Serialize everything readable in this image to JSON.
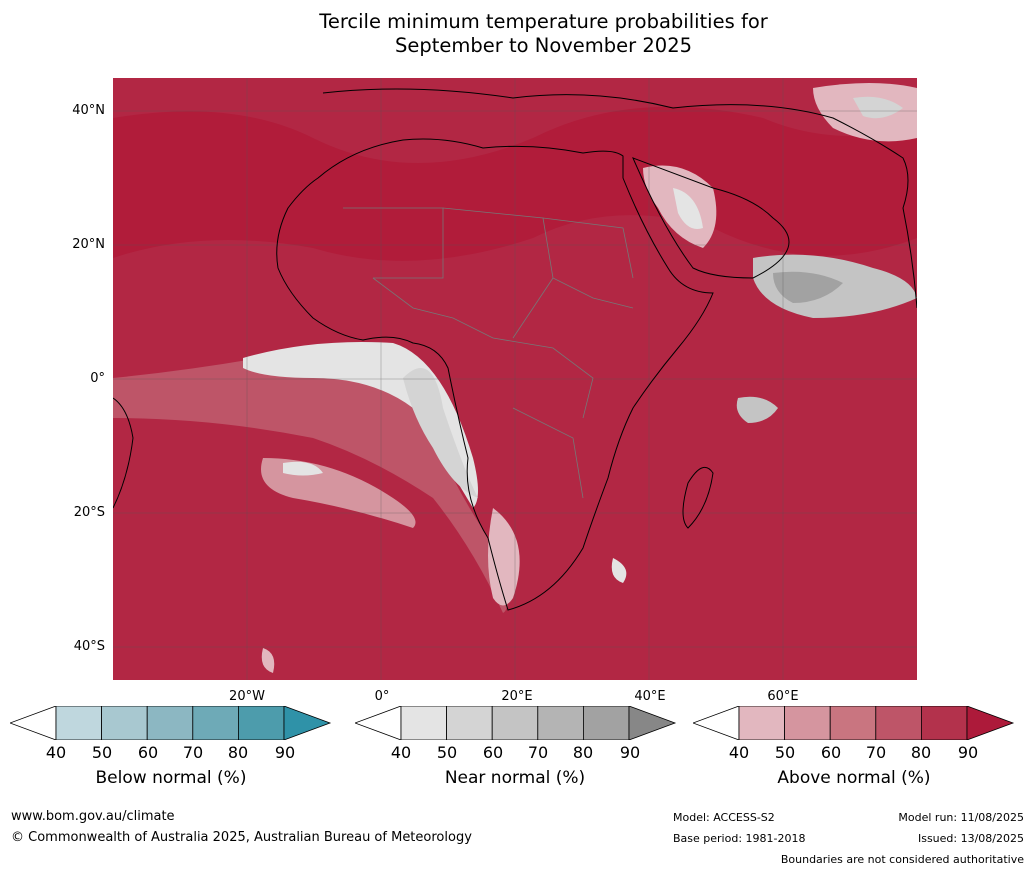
{
  "title_line1": "Tercile minimum temperature probabilities for",
  "title_line2": "September to November 2025",
  "lat_labels": [
    "40°N",
    "20°N",
    "0°",
    "20°S",
    "40°S"
  ],
  "lon_labels": [
    "20°W",
    "0°",
    "20°E",
    "40°E",
    "60°E"
  ],
  "legends": [
    {
      "label": "Below normal (%)",
      "ticks": [
        "40",
        "50",
        "60",
        "70",
        "80",
        "90"
      ],
      "colors": [
        "#bfd7de",
        "#a8c8d0",
        "#8cb7c2",
        "#6eaab7",
        "#4d9cac"
      ],
      "extend_color": "#2f92a8"
    },
    {
      "label": "Near normal (%)",
      "ticks": [
        "40",
        "50",
        "60",
        "70",
        "80",
        "90"
      ],
      "colors": [
        "#e4e4e4",
        "#d4d4d4",
        "#c4c4c4",
        "#b4b4b4",
        "#a2a2a2"
      ],
      "extend_color": "#878787"
    },
    {
      "label": "Above normal (%)",
      "ticks": [
        "40",
        "50",
        "60",
        "70",
        "80",
        "90"
      ],
      "colors": [
        "#e2b7bf",
        "#d5959f",
        "#c97580",
        "#be5568",
        "#b3324c"
      ],
      "extend_color": "#ad1a3a"
    }
  ],
  "footer": {
    "website": "www.bom.gov.au/climate",
    "copyright": "© Commonwealth of Australia 2025, Australian Bureau of Meteorology",
    "model": "Model: ACCESS-S2",
    "base_period": "Base period: 1981-2018",
    "model_run": "Model run: 11/08/2025",
    "issued": "Issued: 13/08/2025",
    "disclaimer": "Boundaries are not considered authoritative"
  }
}
